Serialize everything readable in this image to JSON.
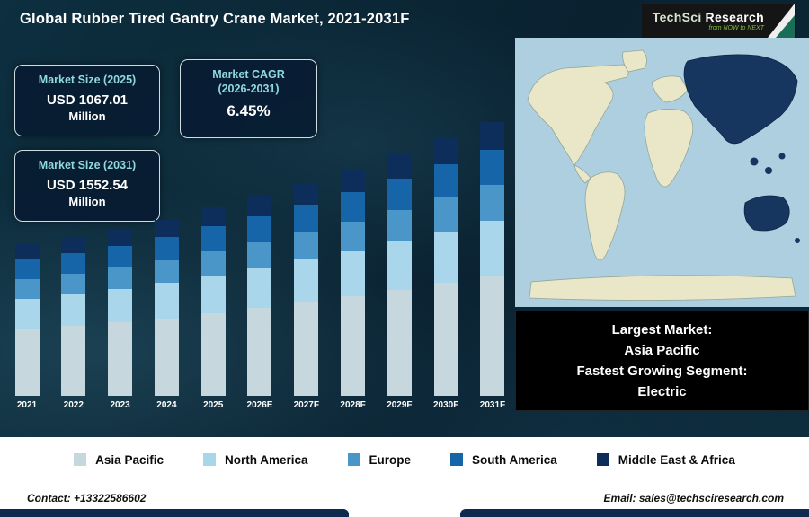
{
  "header": {
    "title": "Global Rubber Tired Gantry Crane Market, 2021-2031F",
    "logo": {
      "brand_primary": "TechSci",
      "brand_secondary": "Research",
      "tagline": "from NOW to NEXT"
    }
  },
  "info_boxes": [
    {
      "title": "Market Size (2025)",
      "value": "USD 1067.01",
      "unit": "Million"
    },
    {
      "title": "Market CAGR",
      "subtitle": "(2026-2031)",
      "value": "6.45%"
    },
    {
      "title": "Market Size (2031)",
      "value": "USD 1552.54",
      "unit": "Million"
    }
  ],
  "map_callout": {
    "line1_label": "Largest Market:",
    "line1_value": "Asia Pacific",
    "line2_label": "Fastest Growing Segment:",
    "line2_value": "Electric"
  },
  "footer": {
    "contact": "Contact: +13322586602",
    "email": "Email: sales@techsciresearch.com"
  },
  "chart_data": {
    "type": "bar",
    "stacked": true,
    "title": "Global Rubber Tired Gantry Crane Market, 2021-2031F",
    "units": "USD Million",
    "categories": [
      "2021",
      "2022",
      "2023",
      "2024",
      "2025",
      "2026E",
      "2027F",
      "2028F",
      "2029F",
      "2030F",
      "2031F"
    ],
    "series": [
      {
        "name": "Asia Pacific",
        "color": "#c6d8de",
        "values": [
          378,
          396,
          416,
          440,
          470,
          499,
          532,
          566,
          603,
          642,
          683
        ]
      },
      {
        "name": "North America",
        "color": "#a9d6ea",
        "values": [
          172,
          180,
          189,
          200,
          213,
          227,
          242,
          257,
          274,
          292,
          311
        ]
      },
      {
        "name": "Europe",
        "color": "#4a96c8",
        "values": [
          112,
          117,
          123,
          130,
          139,
          148,
          157,
          167,
          178,
          190,
          202
        ]
      },
      {
        "name": "South America",
        "color": "#1565a8",
        "values": [
          112,
          117,
          123,
          130,
          139,
          148,
          157,
          167,
          178,
          190,
          202
        ]
      },
      {
        "name": "Middle East & Africa",
        "color": "#0d2d5a",
        "values": [
          86,
          90,
          94,
          100,
          107,
          114,
          121,
          129,
          137,
          146,
          155
        ]
      }
    ],
    "totals": [
      860,
      900,
      945,
      1000,
      1067.01,
      1135,
      1209,
      1287,
      1370,
      1458,
      1552.54
    ],
    "ylim": [
      0,
      1600
    ],
    "legend_position": "bottom",
    "grid": false
  },
  "colors": {
    "background_dark": "#0a2230",
    "accent_teal": "#8fd9dd",
    "callout_bg": "#000000",
    "footer_bar": "#0e2a4e",
    "map_ocean": "#aecfdf",
    "map_land": "#eae6c8",
    "map_highlight": "#16355f"
  }
}
